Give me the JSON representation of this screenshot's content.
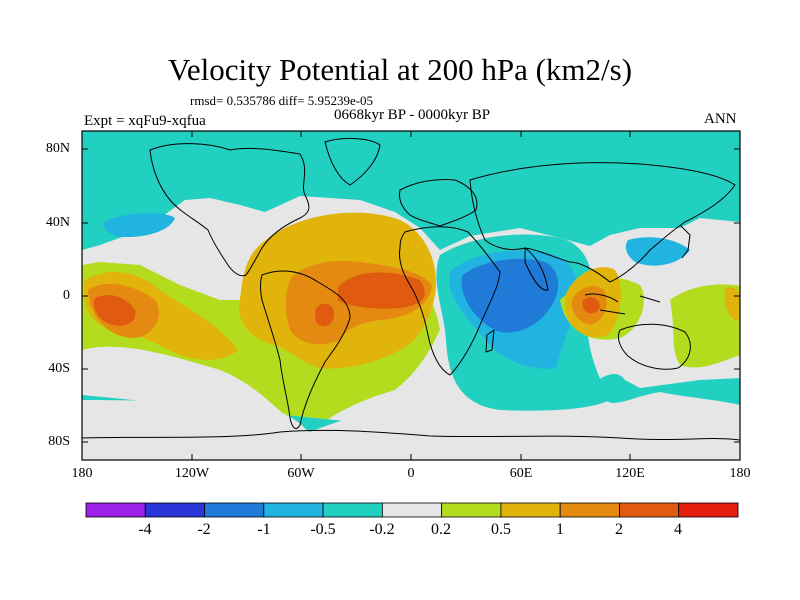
{
  "header": {
    "title": "Velocity Potential at 200 hPa (km2/s)",
    "stats": "rmsd= 0.535786 diff= 5.95239e-05",
    "experiment": "Expt = xqFu9-xqfua",
    "period": "0668kyr BP - 0000kyr BP",
    "season": "ANN"
  },
  "axes": {
    "lat_labels": [
      "80N",
      "40N",
      "0",
      "40S",
      "80S"
    ],
    "lon_labels": [
      "180",
      "120W",
      "60W",
      "0",
      "60E",
      "120E",
      "180"
    ]
  },
  "colorbar": {
    "labels": [
      "-4",
      "-2",
      "-1",
      "-0.5",
      "-0.2",
      "0.2",
      "0.5",
      "1",
      "2",
      "4"
    ],
    "colors": [
      "#9a22e6",
      "#2a36d8",
      "#1f7ad8",
      "#22b4e0",
      "#22d0c2",
      "#e6e6e6",
      "#b4dc1e",
      "#e0b40a",
      "#e48a10",
      "#e05a10",
      "#e61e10"
    ]
  },
  "map": {
    "region": "global",
    "projection": "cylindrical equidistant",
    "lat_range": [
      -90,
      90
    ],
    "lon_range": [
      -180,
      180
    ],
    "field": "200 hPa velocity potential difference"
  }
}
